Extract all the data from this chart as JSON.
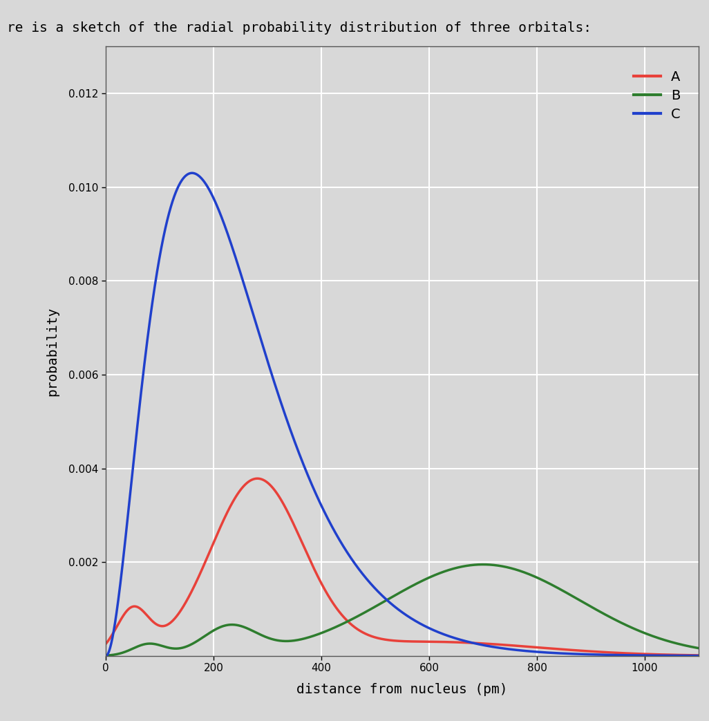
{
  "title": "re is a sketch of the radial probability distribution of three orbitals:",
  "xlabel": "distance from nucleus (pm)",
  "ylabel": "probability",
  "xlim": [
    0,
    1100
  ],
  "ylim": [
    0,
    0.013
  ],
  "yticks": [
    0.002,
    0.004,
    0.006,
    0.008,
    0.01,
    0.012
  ],
  "xticks": [
    0,
    200,
    400,
    600,
    800,
    1000
  ],
  "color_A": "#e8413a",
  "color_B": "#2e7d2e",
  "color_C": "#2040cc",
  "legend_labels": [
    "A",
    "B",
    "C"
  ],
  "background_color": "#d8d8d8",
  "grid_color": "#ffffff",
  "linewidth": 2.5
}
